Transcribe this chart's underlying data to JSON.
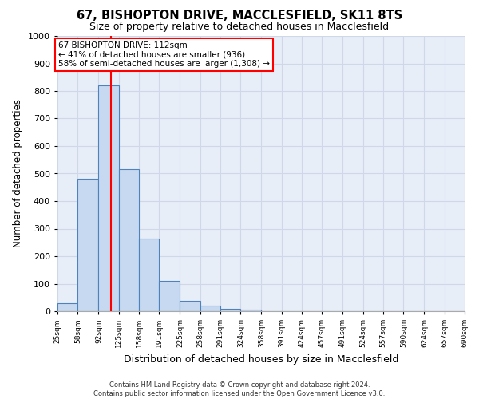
{
  "title": "67, BISHOPTON DRIVE, MACCLESFIELD, SK11 8TS",
  "subtitle": "Size of property relative to detached houses in Macclesfield",
  "xlabel": "Distribution of detached houses by size in Macclesfield",
  "ylabel": "Number of detached properties",
  "footer_line1": "Contains HM Land Registry data © Crown copyright and database right 2024.",
  "footer_line2": "Contains public sector information licensed under the Open Government Licence v3.0.",
  "annotation_line1": "67 BISHOPTON DRIVE: 112sqm",
  "annotation_line2": "← 41% of detached houses are smaller (936)",
  "annotation_line3": "58% of semi-detached houses are larger (1,308) →",
  "property_size": 112,
  "bin_edges": [
    25,
    58,
    92,
    125,
    158,
    191,
    225,
    258,
    291,
    324,
    358,
    391,
    424,
    457,
    491,
    524,
    557,
    590,
    624,
    657,
    690
  ],
  "bar_heights": [
    30,
    480,
    820,
    515,
    265,
    110,
    38,
    20,
    10,
    5,
    0,
    0,
    0,
    0,
    0,
    0,
    0,
    0,
    0,
    0
  ],
  "bar_color": "#c6d9f0",
  "bar_edge_color": "#4f81bd",
  "vline_color": "red",
  "ylim": [
    0,
    1000
  ],
  "yticks": [
    0,
    100,
    200,
    300,
    400,
    500,
    600,
    700,
    800,
    900,
    1000
  ],
  "grid_color": "#d0d8e8",
  "background_color": "#e8eef8",
  "title_fontsize": 10.5,
  "subtitle_fontsize": 9
}
